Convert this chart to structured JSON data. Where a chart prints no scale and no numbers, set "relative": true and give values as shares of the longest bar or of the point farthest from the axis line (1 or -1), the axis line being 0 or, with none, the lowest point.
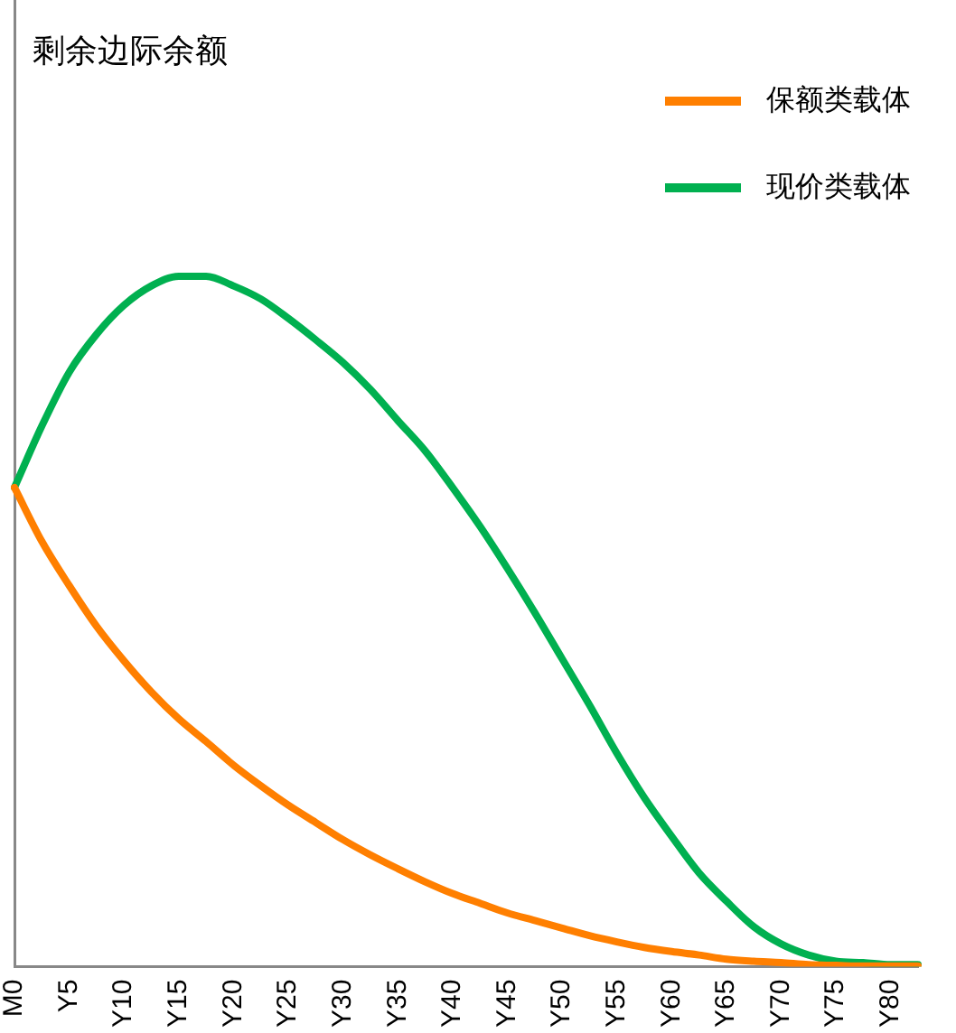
{
  "chart_data": {
    "type": "line",
    "title": "剩余边际余额",
    "relative": true,
    "legend": "top right",
    "grid": false,
    "marker": "none",
    "line_style": "solid",
    "categories": [
      "M0",
      null,
      "Y5",
      null,
      "Y10",
      null,
      "Y15",
      null,
      "Y20",
      null,
      "Y25",
      null,
      "Y30",
      null,
      "Y35",
      null,
      "Y40",
      null,
      "Y45",
      null,
      "Y50",
      null,
      "Y55",
      null,
      "Y60",
      null,
      "Y65",
      null,
      "Y70",
      null,
      "Y75",
      null,
      "Y80",
      null
    ],
    "series": [
      {
        "name": "保额类载体",
        "color": "#ff7f00",
        "values": [
          0.694,
          0.616,
          0.552,
          0.493,
          0.443,
          0.398,
          0.359,
          0.326,
          0.292,
          0.262,
          0.234,
          0.209,
          0.184,
          0.162,
          0.142,
          0.123,
          0.106,
          0.092,
          0.078,
          0.067,
          0.056,
          0.045,
          0.036,
          0.028,
          0.022,
          0.017,
          0.011,
          0.008,
          0.006,
          0.003,
          0.002,
          0.001,
          0.001,
          0.001
        ]
      },
      {
        "name": "现价类载体",
        "color": "#00b050",
        "values": [
          0.694,
          0.783,
          0.861,
          0.916,
          0.958,
          0.986,
          1.0,
          1.0,
          0.986,
          0.967,
          0.939,
          0.908,
          0.875,
          0.836,
          0.791,
          0.747,
          0.694,
          0.638,
          0.577,
          0.513,
          0.446,
          0.379,
          0.309,
          0.245,
          0.189,
          0.136,
          0.095,
          0.058,
          0.033,
          0.017,
          0.008,
          0.006,
          0.003,
          0.003
        ]
      }
    ]
  }
}
